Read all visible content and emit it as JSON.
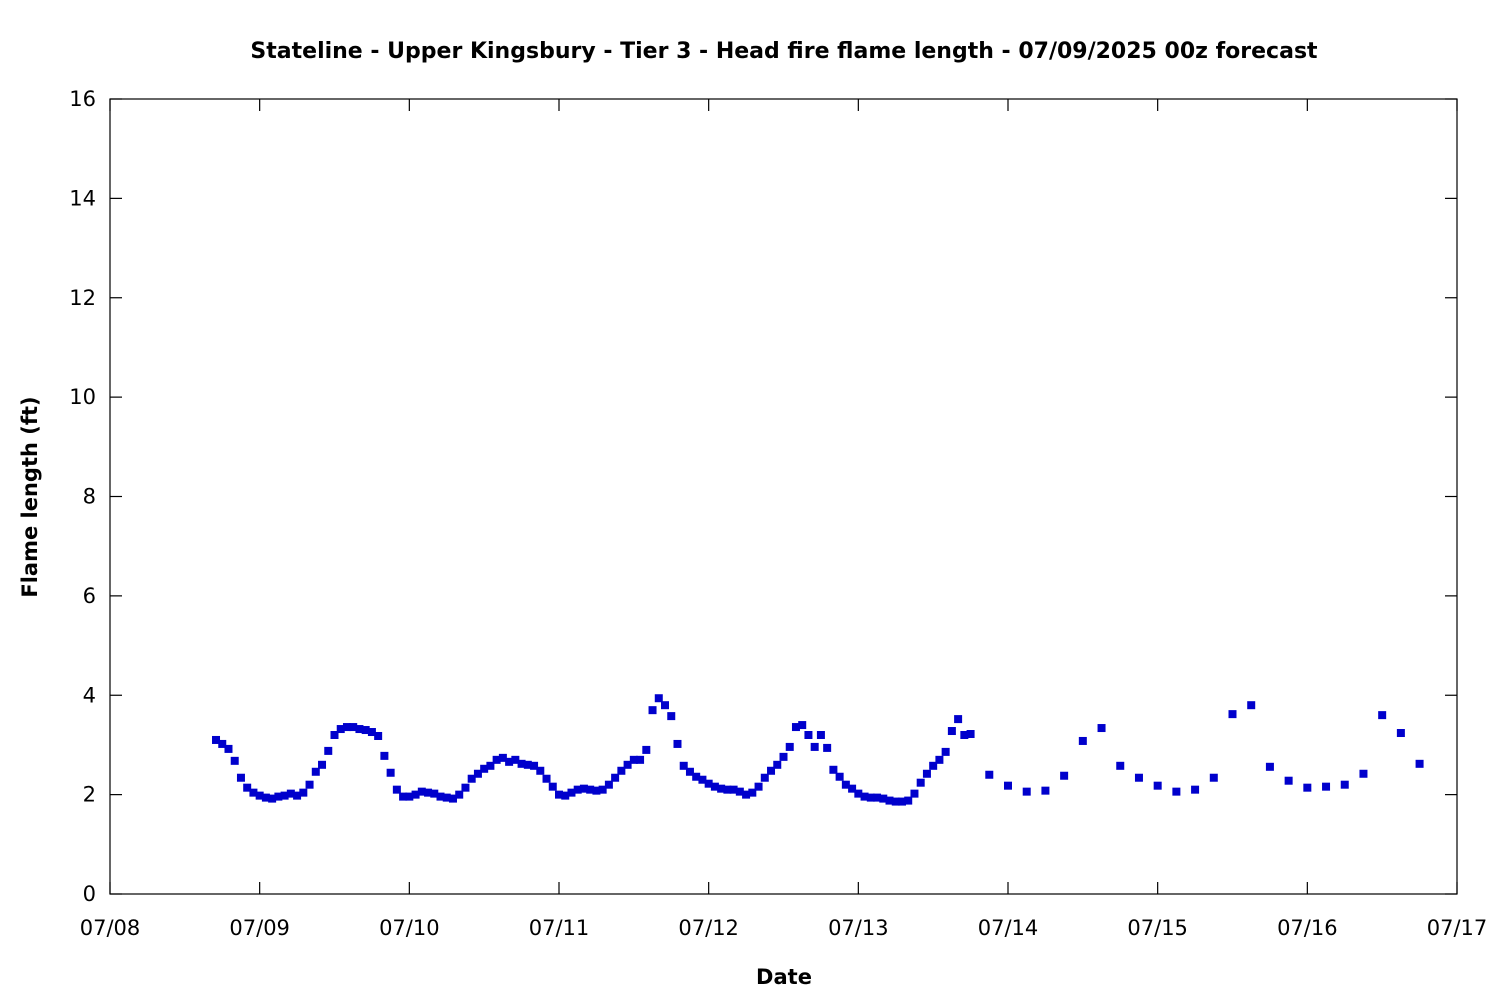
{
  "chart_data": {
    "type": "scatter",
    "title": "Stateline - Upper Kingsbury - Tier 3 - Head fire flame length - 07/09/2025 00z forecast",
    "xlabel": "Date",
    "ylabel": "Flame length (ft)",
    "xlim": [
      "07/08 00:00",
      "07/17 00:00"
    ],
    "ylim": [
      0,
      16
    ],
    "x_ticks": [
      "07/08",
      "07/09",
      "07/10",
      "07/11",
      "07/12",
      "07/13",
      "07/14",
      "07/15",
      "07/16",
      "07/17"
    ],
    "y_ticks": [
      0,
      2,
      4,
      6,
      8,
      10,
      12,
      14,
      16
    ],
    "grid": false,
    "marker": "square",
    "series_color": "#0000cc",
    "points": [
      [
        "07/08 17:00",
        3.1
      ],
      [
        "07/08 18:00",
        3.02
      ],
      [
        "07/08 19:00",
        2.92
      ],
      [
        "07/08 20:00",
        2.68
      ],
      [
        "07/08 21:00",
        2.34
      ],
      [
        "07/08 22:00",
        2.14
      ],
      [
        "07/08 23:00",
        2.04
      ],
      [
        "07/09 00:00",
        1.98
      ],
      [
        "07/09 01:00",
        1.94
      ],
      [
        "07/09 02:00",
        1.92
      ],
      [
        "07/09 03:00",
        1.96
      ],
      [
        "07/09 04:00",
        1.98
      ],
      [
        "07/09 05:00",
        2.02
      ],
      [
        "07/09 06:00",
        1.98
      ],
      [
        "07/09 07:00",
        2.04
      ],
      [
        "07/09 08:00",
        2.2
      ],
      [
        "07/09 09:00",
        2.46
      ],
      [
        "07/09 10:00",
        2.6
      ],
      [
        "07/09 11:00",
        2.88
      ],
      [
        "07/09 12:00",
        3.2
      ],
      [
        "07/09 13:00",
        3.32
      ],
      [
        "07/09 14:00",
        3.36
      ],
      [
        "07/09 15:00",
        3.36
      ],
      [
        "07/09 16:00",
        3.32
      ],
      [
        "07/09 17:00",
        3.3
      ],
      [
        "07/09 18:00",
        3.26
      ],
      [
        "07/09 19:00",
        3.18
      ],
      [
        "07/09 20:00",
        2.78
      ],
      [
        "07/09 21:00",
        2.44
      ],
      [
        "07/09 22:00",
        2.1
      ],
      [
        "07/09 23:00",
        1.96
      ],
      [
        "07/10 00:00",
        1.96
      ],
      [
        "07/10 01:00",
        2.0
      ],
      [
        "07/10 02:00",
        2.06
      ],
      [
        "07/10 03:00",
        2.04
      ],
      [
        "07/10 04:00",
        2.02
      ],
      [
        "07/10 05:00",
        1.96
      ],
      [
        "07/10 06:00",
        1.94
      ],
      [
        "07/10 07:00",
        1.92
      ],
      [
        "07/10 08:00",
        2.0
      ],
      [
        "07/10 09:00",
        2.14
      ],
      [
        "07/10 10:00",
        2.32
      ],
      [
        "07/10 11:00",
        2.42
      ],
      [
        "07/10 12:00",
        2.52
      ],
      [
        "07/10 13:00",
        2.58
      ],
      [
        "07/10 14:00",
        2.7
      ],
      [
        "07/10 15:00",
        2.74
      ],
      [
        "07/10 16:00",
        2.66
      ],
      [
        "07/10 17:00",
        2.7
      ],
      [
        "07/10 18:00",
        2.62
      ],
      [
        "07/10 19:00",
        2.6
      ],
      [
        "07/10 20:00",
        2.58
      ],
      [
        "07/10 21:00",
        2.48
      ],
      [
        "07/10 22:00",
        2.32
      ],
      [
        "07/10 23:00",
        2.16
      ],
      [
        "07/11 00:00",
        2.0
      ],
      [
        "07/11 01:00",
        1.98
      ],
      [
        "07/11 02:00",
        2.04
      ],
      [
        "07/11 03:00",
        2.1
      ],
      [
        "07/11 04:00",
        2.12
      ],
      [
        "07/11 05:00",
        2.1
      ],
      [
        "07/11 06:00",
        2.08
      ],
      [
        "07/11 07:00",
        2.1
      ],
      [
        "07/11 08:00",
        2.2
      ],
      [
        "07/11 09:00",
        2.34
      ],
      [
        "07/11 10:00",
        2.48
      ],
      [
        "07/11 11:00",
        2.6
      ],
      [
        "07/11 12:00",
        2.7
      ],
      [
        "07/11 13:00",
        2.7
      ],
      [
        "07/11 14:00",
        2.9
      ],
      [
        "07/11 15:00",
        3.7
      ],
      [
        "07/11 16:00",
        3.94
      ],
      [
        "07/11 17:00",
        3.8
      ],
      [
        "07/11 18:00",
        3.58
      ],
      [
        "07/11 19:00",
        3.02
      ],
      [
        "07/11 20:00",
        2.58
      ],
      [
        "07/11 21:00",
        2.46
      ],
      [
        "07/11 22:00",
        2.36
      ],
      [
        "07/11 23:00",
        2.3
      ],
      [
        "07/12 00:00",
        2.22
      ],
      [
        "07/12 01:00",
        2.16
      ],
      [
        "07/12 02:00",
        2.12
      ],
      [
        "07/12 03:00",
        2.1
      ],
      [
        "07/12 04:00",
        2.1
      ],
      [
        "07/12 05:00",
        2.06
      ],
      [
        "07/12 06:00",
        2.0
      ],
      [
        "07/12 07:00",
        2.04
      ],
      [
        "07/12 08:00",
        2.16
      ],
      [
        "07/12 09:00",
        2.34
      ],
      [
        "07/12 10:00",
        2.48
      ],
      [
        "07/12 11:00",
        2.6
      ],
      [
        "07/12 12:00",
        2.76
      ],
      [
        "07/12 13:00",
        2.96
      ],
      [
        "07/12 14:00",
        3.36
      ],
      [
        "07/12 15:00",
        3.4
      ],
      [
        "07/12 16:00",
        3.2
      ],
      [
        "07/12 17:00",
        2.96
      ],
      [
        "07/12 18:00",
        3.2
      ],
      [
        "07/12 19:00",
        2.94
      ],
      [
        "07/12 20:00",
        2.5
      ],
      [
        "07/12 21:00",
        2.36
      ],
      [
        "07/12 22:00",
        2.2
      ],
      [
        "07/12 23:00",
        2.12
      ],
      [
        "07/13 00:00",
        2.02
      ],
      [
        "07/13 01:00",
        1.96
      ],
      [
        "07/13 02:00",
        1.94
      ],
      [
        "07/13 03:00",
        1.94
      ],
      [
        "07/13 04:00",
        1.92
      ],
      [
        "07/13 05:00",
        1.88
      ],
      [
        "07/13 06:00",
        1.86
      ],
      [
        "07/13 07:00",
        1.86
      ],
      [
        "07/13 08:00",
        1.88
      ],
      [
        "07/13 09:00",
        2.02
      ],
      [
        "07/13 10:00",
        2.24
      ],
      [
        "07/13 11:00",
        2.42
      ],
      [
        "07/13 12:00",
        2.58
      ],
      [
        "07/13 13:00",
        2.7
      ],
      [
        "07/13 14:00",
        2.86
      ],
      [
        "07/13 15:00",
        3.28
      ],
      [
        "07/13 16:00",
        3.52
      ],
      [
        "07/13 17:00",
        3.2
      ],
      [
        "07/13 18:00",
        3.22
      ],
      [
        "07/13 21:00",
        2.4
      ],
      [
        "07/14 00:00",
        2.18
      ],
      [
        "07/14 03:00",
        2.06
      ],
      [
        "07/14 06:00",
        2.08
      ],
      [
        "07/14 09:00",
        2.38
      ],
      [
        "07/14 12:00",
        3.08
      ],
      [
        "07/14 15:00",
        3.34
      ],
      [
        "07/14 18:00",
        2.58
      ],
      [
        "07/14 21:00",
        2.34
      ],
      [
        "07/15 00:00",
        2.18
      ],
      [
        "07/15 03:00",
        2.06
      ],
      [
        "07/15 06:00",
        2.1
      ],
      [
        "07/15 09:00",
        2.34
      ],
      [
        "07/15 12:00",
        3.62
      ],
      [
        "07/15 15:00",
        3.8
      ],
      [
        "07/15 18:00",
        2.56
      ],
      [
        "07/15 21:00",
        2.28
      ],
      [
        "07/16 00:00",
        2.14
      ],
      [
        "07/16 03:00",
        2.16
      ],
      [
        "07/16 06:00",
        2.2
      ],
      [
        "07/16 09:00",
        2.42
      ],
      [
        "07/16 12:00",
        3.6
      ],
      [
        "07/16 15:00",
        3.24
      ],
      [
        "07/16 18:00",
        2.62
      ]
    ]
  }
}
